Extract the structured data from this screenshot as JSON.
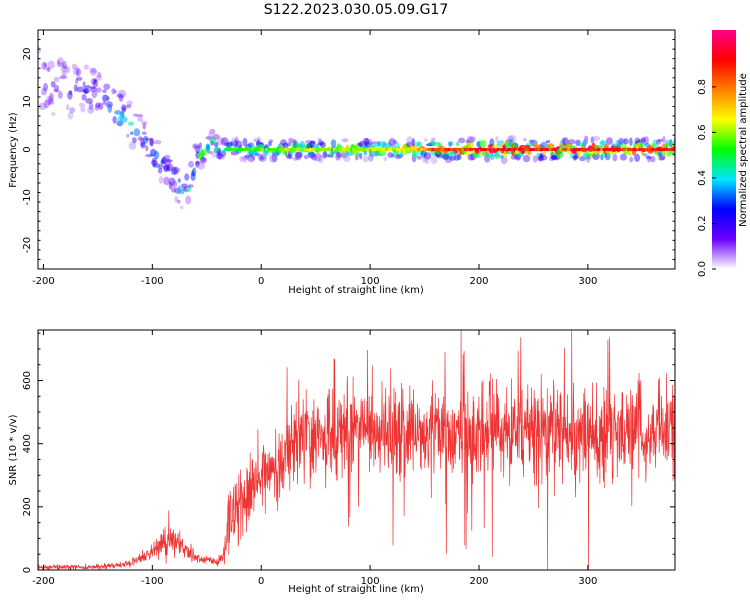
{
  "title": "S122.2023.030.05.09.G17",
  "chart_data": [
    {
      "type": "heatmap",
      "xlabel": "Height of straight line (km)",
      "ylabel": "Frequency (Hz)",
      "xlim": [
        -205,
        380
      ],
      "ylim": [
        -25,
        25
      ],
      "x_ticks": [
        -200,
        -100,
        0,
        100,
        200,
        300
      ],
      "y_ticks": [
        -20,
        -10,
        0,
        10,
        20
      ],
      "colorbar": {
        "label": "Normalized spectral amplitude",
        "range": [
          0,
          1
        ],
        "ticks": [
          0.0,
          0.2,
          0.4,
          0.6,
          0.8
        ],
        "tick_labels": [
          "0.0",
          "0.2",
          "0.4",
          "0.6",
          "0.8"
        ],
        "colormap": "rainbow",
        "colors": [
          "#ffffff",
          "#6a00ff",
          "#0000ff",
          "#00e5ff",
          "#00ff00",
          "#ffff00",
          "#ff7f00",
          "#ff0000",
          "#ff0088"
        ]
      },
      "ridge": {
        "x": [
          -200,
          -150,
          -140,
          -130,
          -120,
          -110,
          -100,
          -90,
          -80,
          -75,
          -70,
          -60,
          -50,
          -45,
          -40,
          -30,
          0,
          50,
          100,
          130,
          150,
          160,
          200,
          250,
          300,
          380
        ],
        "freq": [
          14,
          12,
          9,
          8,
          5,
          3,
          0,
          -3,
          -5,
          -8,
          -10,
          -2,
          0,
          2,
          0,
          0,
          0,
          0,
          0,
          0,
          0,
          0,
          0,
          0,
          0,
          0
        ],
        "amplitude": [
          0.15,
          0.2,
          0.3,
          0.4,
          0.35,
          0.3,
          0.3,
          0.25,
          0.3,
          0.35,
          0.4,
          0.45,
          0.5,
          0.4,
          0.45,
          0.5,
          0.55,
          0.6,
          0.6,
          0.65,
          0.75,
          0.85,
          0.9,
          0.9,
          0.9,
          0.9
        ],
        "spread_hz": [
          10,
          6,
          5,
          5,
          5,
          5,
          6,
          6,
          5,
          4,
          4,
          3,
          2,
          2,
          2,
          2,
          2,
          2,
          2,
          2,
          2,
          2,
          2,
          2,
          2,
          2
        ]
      }
    },
    {
      "type": "line",
      "xlabel": "Height of straight line (km)",
      "ylabel": "SNR (10 * v/v)",
      "xlim": [
        -205,
        380
      ],
      "ylim": [
        0,
        760
      ],
      "x_ticks": [
        -200,
        -100,
        0,
        100,
        200,
        300
      ],
      "y_ticks": [
        0,
        200,
        400,
        600
      ],
      "color": "#ee3333",
      "series": [
        {
          "x": [
            -205,
            -150,
            -120,
            -110,
            -100,
            -90,
            -80,
            -70,
            -60,
            -50,
            -40,
            -35,
            -30,
            -25,
            -20,
            -10,
            0,
            10,
            20,
            30,
            50,
            100,
            150,
            200,
            250,
            300,
            350,
            380
          ],
          "mean": [
            8,
            10,
            20,
            40,
            60,
            90,
            100,
            60,
            40,
            30,
            25,
            40,
            150,
            180,
            200,
            240,
            290,
            330,
            360,
            400,
            420,
            440,
            440,
            440,
            440,
            430,
            440,
            440
          ],
          "noise": [
            4,
            4,
            6,
            10,
            15,
            25,
            25,
            15,
            10,
            8,
            8,
            15,
            50,
            60,
            60,
            60,
            60,
            60,
            60,
            70,
            75,
            75,
            75,
            80,
            80,
            80,
            75,
            70
          ]
        }
      ]
    }
  ]
}
